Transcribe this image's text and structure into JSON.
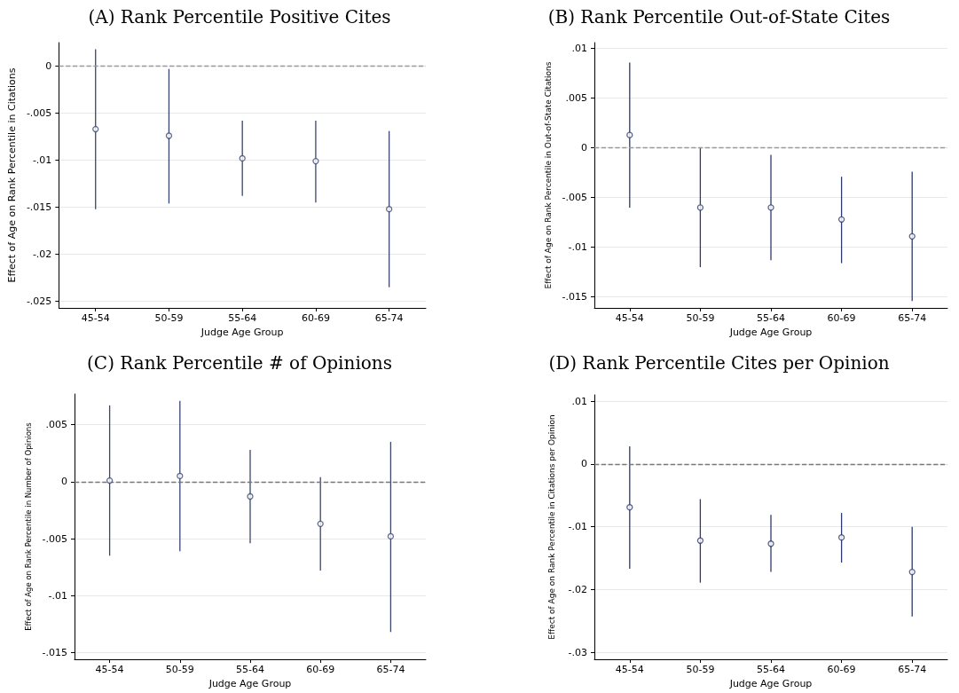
{
  "chart_data": [
    {
      "type": "scatter",
      "title": "(A) Rank Percentile Positive Cites",
      "xlabel": "Judge Age Group",
      "ylabel": "Effect of Age on Rank Percentile in Citations",
      "categories": [
        "45-54",
        "50-59",
        "55-64",
        "60-69",
        "65-74"
      ],
      "values": [
        -0.0067,
        -0.0074,
        -0.0098,
        -0.0101,
        -0.0152
      ],
      "errors": [
        [
          -0.0152,
          0.0018
        ],
        [
          -0.0146,
          -0.0003
        ],
        [
          -0.0138,
          -0.0058
        ],
        [
          -0.0145,
          -0.0058
        ],
        [
          -0.0235,
          -0.0069
        ]
      ],
      "color": "#3a4670",
      "marker": "circle",
      "ylim": [
        -0.0257,
        0.0025
      ],
      "yticks": [
        {
          "value": -0.025,
          "label": "-.025"
        },
        {
          "value": -0.02,
          "label": "-.02"
        },
        {
          "value": -0.015,
          "label": "-.015"
        },
        {
          "value": -0.01,
          "label": "-.01"
        },
        {
          "value": -0.005,
          "label": "-.005"
        },
        {
          "value": 0,
          "label": "0"
        }
      ],
      "grid": "y",
      "ref_lines": [
        {
          "axis": "y",
          "value": 0,
          "color": "#999999",
          "line_style": "dashed"
        }
      ]
    },
    {
      "type": "scatter",
      "title": "(B) Rank Percentile Out-of-State Cites",
      "xlabel": "Judge Age Group",
      "ylabel": "Effect of Age on Rank Percentile in Out-of-State Citations",
      "categories": [
        "45-54",
        "50-59",
        "55-64",
        "60-69",
        "65-74"
      ],
      "values": [
        0.0013,
        -0.006,
        -0.006,
        -0.0072,
        -0.0089
      ],
      "errors": [
        [
          -0.006,
          0.0086
        ],
        [
          -0.012,
          0.0
        ],
        [
          -0.0113,
          -0.0007
        ],
        [
          -0.0116,
          -0.0029
        ],
        [
          -0.0154,
          -0.0024
        ]
      ],
      "color": "#2e3a6a",
      "marker": "circle",
      "ylim": [
        -0.0161,
        0.0106
      ],
      "yticks": [
        {
          "value": -0.015,
          "label": "-.015"
        },
        {
          "value": -0.01,
          "label": "-.01"
        },
        {
          "value": -0.005,
          "label": "-.005"
        },
        {
          "value": 0,
          "label": "0"
        },
        {
          "value": 0.005,
          "label": ".005"
        },
        {
          "value": 0.01,
          "label": ".01"
        }
      ],
      "grid": "y",
      "ref_lines": [
        {
          "axis": "y",
          "value": 0,
          "color": "#999999",
          "line_style": "dashed"
        }
      ]
    },
    {
      "type": "scatter",
      "title": "(C) Rank Percentile # of Opinions",
      "xlabel": "Judge Age Group",
      "ylabel": "Effect of Age on Rank Percentile in Number of Opinions",
      "categories": [
        "45-54",
        "50-59",
        "55-64",
        "60-69",
        "65-74"
      ],
      "values": [
        0.0001,
        0.0005,
        -0.0013,
        -0.0037,
        -0.0048
      ],
      "errors": [
        [
          -0.0065,
          0.0067
        ],
        [
          -0.0061,
          0.0071
        ],
        [
          -0.0054,
          0.0028
        ],
        [
          -0.0078,
          0.0004
        ],
        [
          -0.0132,
          0.0035
        ]
      ],
      "color": "#3a4670",
      "marker": "circle",
      "ylim": [
        -0.0156,
        0.0077
      ],
      "yticks": [
        {
          "value": -0.015,
          "label": "-.015"
        },
        {
          "value": -0.01,
          "label": "-.01"
        },
        {
          "value": -0.005,
          "label": "-.005"
        },
        {
          "value": 0,
          "label": "0"
        },
        {
          "value": 0.005,
          "label": ".005"
        }
      ],
      "grid": "y",
      "ref_lines": [
        {
          "axis": "y",
          "value": 0,
          "color": "#777777",
          "line_style": "dashed"
        }
      ]
    },
    {
      "type": "scatter",
      "title": "(D) Rank Percentile Cites per Opinion",
      "xlabel": "Judge Age Group",
      "ylabel": "Effect of Age on Rank Percentile in Citations per Opinion",
      "categories": [
        "45-54",
        "50-59",
        "55-64",
        "60-69",
        "65-74"
      ],
      "values": [
        -0.0069,
        -0.0122,
        -0.0127,
        -0.0117,
        -0.0172
      ],
      "errors": [
        [
          -0.0167,
          0.0028
        ],
        [
          -0.0189,
          -0.0056
        ],
        [
          -0.0172,
          -0.0081
        ],
        [
          -0.0157,
          -0.0078
        ],
        [
          -0.0243,
          -0.01
        ]
      ],
      "color": "#2e3a6a",
      "marker": "circle",
      "ylim": [
        -0.0311,
        0.011
      ],
      "yticks": [
        {
          "value": -0.03,
          "label": "-.03"
        },
        {
          "value": -0.02,
          "label": "-.02"
        },
        {
          "value": -0.01,
          "label": "-.01"
        },
        {
          "value": 0,
          "label": "0"
        },
        {
          "value": 0.01,
          "label": ".01"
        }
      ],
      "grid": "y",
      "ref_lines": [
        {
          "axis": "y",
          "value": 0,
          "color": "#777777",
          "line_style": "dashed"
        }
      ]
    }
  ]
}
